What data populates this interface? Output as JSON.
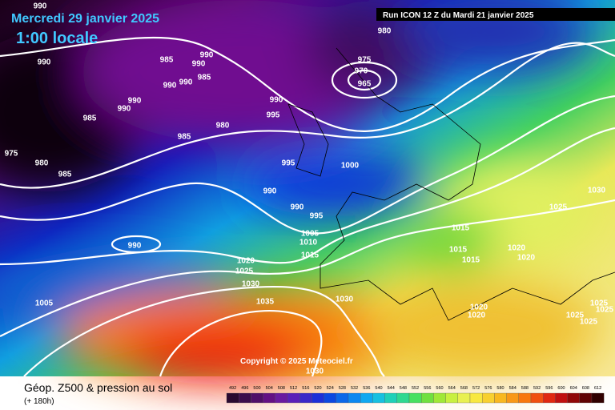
{
  "header": {
    "date": "Mercredi 29 janvier 2025",
    "time": "1:00 locale",
    "run": "Run ICON 12 Z du Mardi 21 janvier 2025"
  },
  "footer": {
    "title": "Géop. Z500 & pression au sol",
    "subtitle": "(+ 180h)",
    "copyright": "Copyright © 2025 Meteociel.fr"
  },
  "legend": {
    "labels": [
      "492",
      "496",
      "500",
      "504",
      "508",
      "512",
      "516",
      "520",
      "524",
      "528",
      "532",
      "536",
      "540",
      "544",
      "548",
      "552",
      "556",
      "560",
      "564",
      "568",
      "572",
      "576",
      "580",
      "584",
      "588",
      "592",
      "596",
      "600",
      "604",
      "608",
      "612"
    ]
  },
  "isobar_labels": [
    "990",
    "990",
    "985",
    "990",
    "990",
    "990",
    "990",
    "985",
    "990",
    "990",
    "985",
    "975",
    "980",
    "985",
    "980",
    "985",
    "990",
    "995",
    "980",
    "975",
    "970",
    "965",
    "995",
    "1000",
    "990",
    "990",
    "995",
    "990",
    "1005",
    "1010",
    "1015",
    "1020",
    "1025",
    "1030",
    "1035",
    "1030",
    "1005",
    "1015",
    "1015",
    "1015",
    "1020",
    "1020",
    "1025",
    "1030",
    "1025",
    "1025",
    "1025",
    "1025",
    "1020",
    "1020",
    "1030"
  ]
}
